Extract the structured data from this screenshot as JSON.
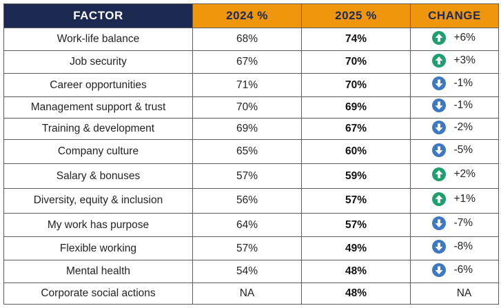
{
  "chart_data": {
    "type": "table",
    "columns": [
      "FACTOR",
      "2024 %",
      "2025 %",
      "CHANGE"
    ],
    "rows": [
      {
        "factor": "Work-life balance",
        "y2024": "68%",
        "y2025": "74%",
        "change": "+6%",
        "direction": "up"
      },
      {
        "factor": "Job security",
        "y2024": "67%",
        "y2025": "70%",
        "change": "+3%",
        "direction": "up"
      },
      {
        "factor": "Career opportunities",
        "y2024": "71%",
        "y2025": "70%",
        "change": "-1%",
        "direction": "down"
      },
      {
        "factor": "Management support & trust",
        "y2024": "70%",
        "y2025": "69%",
        "change": "-1%",
        "direction": "down"
      },
      {
        "factor": "Training & development",
        "y2024": "69%",
        "y2025": "67%",
        "change": "-2%",
        "direction": "down"
      },
      {
        "factor": "Company culture",
        "y2024": "65%",
        "y2025": "60%",
        "change": "-5%",
        "direction": "down"
      },
      {
        "factor": "Salary & bonuses",
        "y2024": "57%",
        "y2025": "59%",
        "change": "+2%",
        "direction": "up"
      },
      {
        "factor": "Diversity, equity & inclusion",
        "y2024": "56%",
        "y2025": "57%",
        "change": "+1%",
        "direction": "up"
      },
      {
        "factor": "My work has purpose",
        "y2024": "64%",
        "y2025": "57%",
        "change": "-7%",
        "direction": "down"
      },
      {
        "factor": "Flexible working",
        "y2024": "57%",
        "y2025": "49%",
        "change": "-8%",
        "direction": "down"
      },
      {
        "factor": "Mental health",
        "y2024": "54%",
        "y2025": "48%",
        "change": "-6%",
        "direction": "down"
      },
      {
        "factor": "Corporate social actions",
        "y2024": "NA",
        "y2025": "48%",
        "change": "NA",
        "direction": "none"
      }
    ]
  },
  "colors": {
    "header_navy": "#1c2a52",
    "header_orange": "#f0960c",
    "arrow_up": "#1f9e6e",
    "arrow_down": "#3f78c2"
  },
  "icons": {
    "up": "arrow-up-circle-icon",
    "down": "arrow-down-circle-icon"
  }
}
